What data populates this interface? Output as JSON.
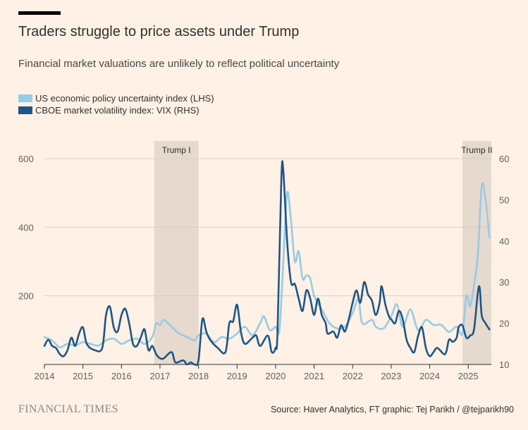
{
  "header": {
    "title": "Traders struggle to price assets under Trump",
    "subtitle": "Financial market valuations are unlikely to reflect political uncertainty"
  },
  "footer": {
    "brand": "FINANCIAL TIMES",
    "source": "Source: Haver Analytics, FT graphic: Tej Parikh / @tejparikh90"
  },
  "colors": {
    "background": "#fff1e5",
    "epu": "#96cce4",
    "vix": "#1e5585",
    "shade": "#e6d9ce",
    "grid": "#d9cdc2"
  },
  "chart_data": {
    "type": "line",
    "legend": [
      {
        "name": "US economic policy uncertainty index (LHS)",
        "color": "#96cce4"
      },
      {
        "name": "CBOE market volatility index: VIX (RHS)",
        "color": "#1e5585"
      }
    ],
    "x_axis": {
      "min": 2014.0,
      "max": 2025.6,
      "ticks": [
        "2014",
        "2015",
        "2016",
        "2017",
        "2018",
        "2019",
        "2020",
        "2021",
        "2022",
        "2023",
        "2024",
        "2025"
      ]
    },
    "y_left": {
      "min": 0,
      "max": 600,
      "ticks": [
        "200",
        "400",
        "600"
      ]
    },
    "y_right": {
      "min": 10,
      "max": 60,
      "ticks": [
        "10",
        "20",
        "30",
        "40",
        "50",
        "60"
      ]
    },
    "shaded_regions": [
      {
        "label": "Trump I",
        "start": 2016.85,
        "end": 2018.0
      },
      {
        "label": "Trump II",
        "start": 2024.85,
        "end": 2025.6
      }
    ],
    "series": [
      {
        "name": "US economic policy uncertainty index (LHS)",
        "axis": "left",
        "points": [
          [
            2014.0,
            80
          ],
          [
            2014.2,
            70
          ],
          [
            2014.4,
            50
          ],
          [
            2014.6,
            60
          ],
          [
            2014.8,
            55
          ],
          [
            2015.0,
            65
          ],
          [
            2015.2,
            60
          ],
          [
            2015.4,
            55
          ],
          [
            2015.6,
            70
          ],
          [
            2015.8,
            75
          ],
          [
            2016.0,
            60
          ],
          [
            2016.2,
            70
          ],
          [
            2016.4,
            75
          ],
          [
            2016.6,
            60
          ],
          [
            2016.8,
            80
          ],
          [
            2016.9,
            120
          ],
          [
            2017.0,
            115
          ],
          [
            2017.1,
            130
          ],
          [
            2017.3,
            110
          ],
          [
            2017.5,
            90
          ],
          [
            2017.7,
            80
          ],
          [
            2017.9,
            70
          ],
          [
            2018.0,
            85
          ],
          [
            2018.2,
            90
          ],
          [
            2018.4,
            65
          ],
          [
            2018.6,
            80
          ],
          [
            2018.8,
            75
          ],
          [
            2019.0,
            90
          ],
          [
            2019.2,
            110
          ],
          [
            2019.4,
            85
          ],
          [
            2019.6,
            120
          ],
          [
            2019.7,
            140
          ],
          [
            2019.85,
            100
          ],
          [
            2020.0,
            110
          ],
          [
            2020.1,
            100
          ],
          [
            2020.2,
            300
          ],
          [
            2020.3,
            500
          ],
          [
            2020.4,
            420
          ],
          [
            2020.5,
            300
          ],
          [
            2020.6,
            330
          ],
          [
            2020.7,
            250
          ],
          [
            2020.8,
            260
          ],
          [
            2020.9,
            250
          ],
          [
            2021.0,
            200
          ],
          [
            2021.2,
            160
          ],
          [
            2021.4,
            120
          ],
          [
            2021.6,
            105
          ],
          [
            2021.8,
            110
          ],
          [
            2022.0,
            150
          ],
          [
            2022.15,
            190
          ],
          [
            2022.25,
            120
          ],
          [
            2022.5,
            130
          ],
          [
            2022.6,
            110
          ],
          [
            2022.8,
            105
          ],
          [
            2023.0,
            140
          ],
          [
            2023.15,
            175
          ],
          [
            2023.3,
            110
          ],
          [
            2023.5,
            160
          ],
          [
            2023.7,
            100
          ],
          [
            2023.9,
            130
          ],
          [
            2024.1,
            115
          ],
          [
            2024.3,
            115
          ],
          [
            2024.5,
            95
          ],
          [
            2024.7,
            110
          ],
          [
            2024.85,
            90
          ],
          [
            2024.95,
            200
          ],
          [
            2025.05,
            170
          ],
          [
            2025.15,
            230
          ],
          [
            2025.25,
            320
          ],
          [
            2025.35,
            520
          ],
          [
            2025.45,
            480
          ],
          [
            2025.55,
            370
          ]
        ]
      },
      {
        "name": "CBOE market volatility index: VIX (RHS)",
        "axis": "right",
        "points": [
          [
            2014.0,
            14.5
          ],
          [
            2014.1,
            16.0
          ],
          [
            2014.2,
            14.5
          ],
          [
            2014.3,
            14.0
          ],
          [
            2014.4,
            12.5
          ],
          [
            2014.5,
            12.0
          ],
          [
            2014.6,
            13.5
          ],
          [
            2014.7,
            16.5
          ],
          [
            2014.8,
            14.5
          ],
          [
            2014.9,
            17.5
          ],
          [
            2015.0,
            19.0
          ],
          [
            2015.1,
            15.0
          ],
          [
            2015.3,
            13.5
          ],
          [
            2015.5,
            14.0
          ],
          [
            2015.6,
            22.0
          ],
          [
            2015.7,
            24.0
          ],
          [
            2015.8,
            19.0
          ],
          [
            2015.9,
            18.0
          ],
          [
            2016.0,
            22.0
          ],
          [
            2016.1,
            23.5
          ],
          [
            2016.2,
            20.0
          ],
          [
            2016.3,
            15.0
          ],
          [
            2016.4,
            14.5
          ],
          [
            2016.5,
            16.5
          ],
          [
            2016.6,
            18.5
          ],
          [
            2016.7,
            13.5
          ],
          [
            2016.8,
            14.5
          ],
          [
            2016.9,
            12.5
          ],
          [
            2017.0,
            11.5
          ],
          [
            2017.1,
            11.5
          ],
          [
            2017.3,
            13.0
          ],
          [
            2017.4,
            10.5
          ],
          [
            2017.6,
            11.0
          ],
          [
            2017.7,
            10.0
          ],
          [
            2017.8,
            10.5
          ],
          [
            2017.9,
            10.0
          ],
          [
            2018.0,
            11.0
          ],
          [
            2018.1,
            21.0
          ],
          [
            2018.2,
            18.0
          ],
          [
            2018.3,
            16.0
          ],
          [
            2018.5,
            14.0
          ],
          [
            2018.7,
            13.0
          ],
          [
            2018.8,
            20.0
          ],
          [
            2018.9,
            20.5
          ],
          [
            2019.0,
            24.5
          ],
          [
            2019.1,
            18.0
          ],
          [
            2019.2,
            15.0
          ],
          [
            2019.4,
            16.5
          ],
          [
            2019.5,
            17.0
          ],
          [
            2019.6,
            14.5
          ],
          [
            2019.8,
            17.0
          ],
          [
            2019.9,
            13.0
          ],
          [
            2020.0,
            14.0
          ],
          [
            2020.05,
            18.0
          ],
          [
            2020.15,
            55.0
          ],
          [
            2020.2,
            57.0
          ],
          [
            2020.3,
            40.0
          ],
          [
            2020.4,
            30.0
          ],
          [
            2020.5,
            29.5
          ],
          [
            2020.6,
            26.0
          ],
          [
            2020.7,
            23.0
          ],
          [
            2020.8,
            28.0
          ],
          [
            2020.9,
            26.0
          ],
          [
            2021.0,
            22.0
          ],
          [
            2021.1,
            26.0
          ],
          [
            2021.2,
            22.0
          ],
          [
            2021.3,
            20.0
          ],
          [
            2021.35,
            17.5
          ],
          [
            2021.5,
            18.0
          ],
          [
            2021.6,
            16.5
          ],
          [
            2021.7,
            19.5
          ],
          [
            2021.8,
            18.0
          ],
          [
            2021.9,
            21.0
          ],
          [
            2022.0,
            25.0
          ],
          [
            2022.1,
            28.0
          ],
          [
            2022.2,
            25.0
          ],
          [
            2022.3,
            30.0
          ],
          [
            2022.4,
            27.0
          ],
          [
            2022.5,
            25.5
          ],
          [
            2022.6,
            22.0
          ],
          [
            2022.7,
            25.0
          ],
          [
            2022.75,
            29.0
          ],
          [
            2022.85,
            24.5
          ],
          [
            2022.95,
            21.5
          ],
          [
            2023.0,
            21.0
          ],
          [
            2023.1,
            20.0
          ],
          [
            2023.2,
            23.0
          ],
          [
            2023.3,
            21.0
          ],
          [
            2023.4,
            16.0
          ],
          [
            2023.5,
            14.0
          ],
          [
            2023.6,
            13.0
          ],
          [
            2023.7,
            17.0
          ],
          [
            2023.8,
            19.0
          ],
          [
            2023.9,
            14.0
          ],
          [
            2024.0,
            12.0
          ],
          [
            2024.1,
            13.0
          ],
          [
            2024.2,
            14.0
          ],
          [
            2024.4,
            12.5
          ],
          [
            2024.5,
            16.0
          ],
          [
            2024.6,
            15.5
          ],
          [
            2024.7,
            16.5
          ],
          [
            2024.75,
            19.0
          ],
          [
            2024.85,
            19.5
          ],
          [
            2024.95,
            16.5
          ],
          [
            2025.05,
            17.0
          ],
          [
            2025.15,
            18.5
          ],
          [
            2025.25,
            27.5
          ],
          [
            2025.3,
            28.5
          ],
          [
            2025.35,
            22.0
          ],
          [
            2025.45,
            20.0
          ],
          [
            2025.55,
            18.5
          ]
        ]
      }
    ]
  }
}
